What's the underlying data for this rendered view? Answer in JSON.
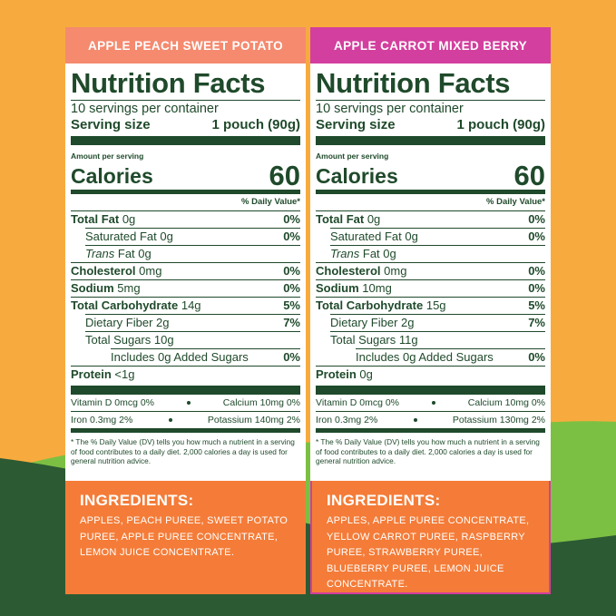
{
  "panels": [
    {
      "header": "APPLE PEACH SWEET POTATO",
      "title": "Nutrition Facts",
      "servings": "10 servings per container",
      "serving_size_label": "Serving size",
      "serving_size_value": "1 pouch (90g)",
      "amount_per_serving": "Amount per serving",
      "calories_label": "Calories",
      "calories_value": "60",
      "dv_header": "% Daily Value*",
      "rows": [
        {
          "label": "Total Fat",
          "amount": "0g",
          "dv": "0%"
        },
        {
          "label": "Saturated Fat 0g",
          "dv": "0%"
        },
        {
          "label": "Trans",
          "amount": "Fat 0g"
        },
        {
          "label": "Cholesterol",
          "amount": "0mg",
          "dv": "0%"
        },
        {
          "label": "Sodium",
          "amount": "5mg",
          "dv": "0%"
        },
        {
          "label": "Total Carbohydrate",
          "amount": "14g",
          "dv": "5%"
        },
        {
          "label": "Dietary Fiber 2g",
          "dv": "7%"
        },
        {
          "label": "Total Sugars 10g"
        },
        {
          "label": "Includes 0g Added Sugars",
          "dv": "0%"
        },
        {
          "label": "Protein",
          "amount": "<1g"
        }
      ],
      "vitamins": [
        [
          "Vitamin D 0mcg 0%",
          "Calcium 10mg 0%"
        ],
        [
          "Iron 0.3mg 2%",
          "Potassium 140mg 2%"
        ]
      ],
      "footnote": "* The % Daily Value (DV) tells you how much a nutrient in a serving of food contributes to a daily diet. 2,000 calories a day is used for general nutrition advice.",
      "ingredients_title": "INGREDIENTS:",
      "ingredients": "APPLES, PEACH PUREE, SWEET POTATO PUREE, APPLE PUREE CONCENTRATE, LEMON JUICE CONCENTRATE."
    },
    {
      "header": "APPLE CARROT MIXED BERRY",
      "title": "Nutrition Facts",
      "servings": "10 servings per container",
      "serving_size_label": "Serving size",
      "serving_size_value": "1 pouch (90g)",
      "amount_per_serving": "Amount per serving",
      "calories_label": "Calories",
      "calories_value": "60",
      "dv_header": "% Daily Value*",
      "rows": [
        {
          "label": "Total Fat",
          "amount": "0g",
          "dv": "0%"
        },
        {
          "label": "Saturated Fat 0g",
          "dv": "0%"
        },
        {
          "label": "Trans",
          "amount": "Fat 0g"
        },
        {
          "label": "Cholesterol",
          "amount": "0mg",
          "dv": "0%"
        },
        {
          "label": "Sodium",
          "amount": "10mg",
          "dv": "0%"
        },
        {
          "label": "Total Carbohydrate",
          "amount": "15g",
          "dv": "5%"
        },
        {
          "label": "Dietary Fiber 2g",
          "dv": "7%"
        },
        {
          "label": "Total Sugars 11g"
        },
        {
          "label": "Includes 0g Added Sugars",
          "dv": "0%"
        },
        {
          "label": "Protein",
          "amount": "0g"
        }
      ],
      "vitamins": [
        [
          "Vitamin D 0mcg 0%",
          "Calcium 10mg 0%"
        ],
        [
          "Iron 0.3mg 2%",
          "Potassium 130mg 2%"
        ]
      ],
      "footnote": "* The % Daily Value (DV) tells you how much a nutrient in a serving of food contributes to a daily diet. 2,000 calories a day is used for general nutrition advice.",
      "ingredients_title": "INGREDIENTS:",
      "ingredients": "APPLES, APPLE PUREE CONCENTRATE, YELLOW CARROT PUREE, RASPBERRY PUREE, STRAWBERRY PUREE, BLUEBERRY PUREE, LEMON JUICE CONCENTRATE."
    }
  ]
}
